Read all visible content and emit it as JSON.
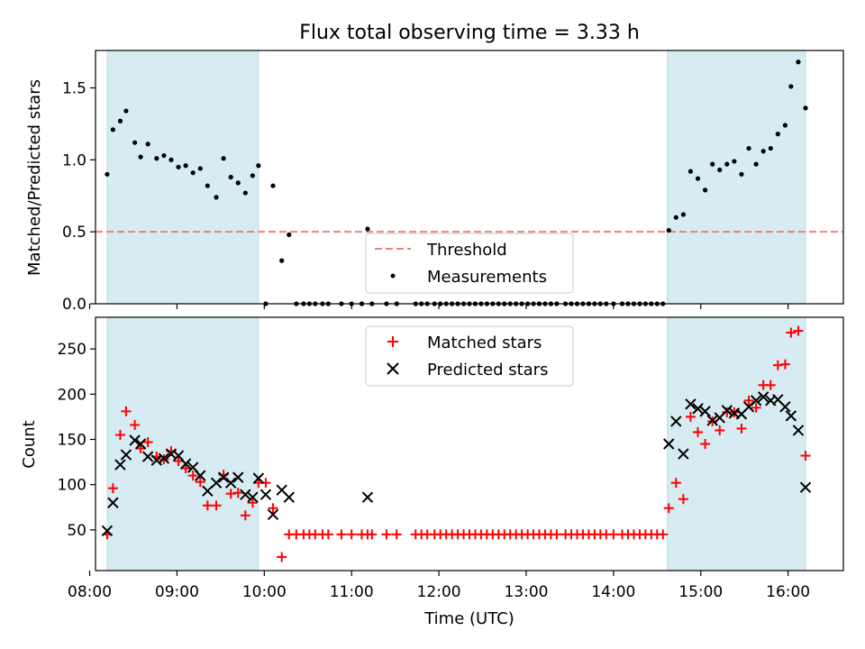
{
  "chart_data": [
    {
      "type": "scatter",
      "title": "Flux total observing time = 3.33 h",
      "xlabel": "",
      "ylabel": "Matched/Predicted stars",
      "xlim": [
        "08:04",
        "16:38"
      ],
      "ylim": [
        0,
        1.76
      ],
      "yticks": [
        "0.0",
        "0.5",
        "1.0",
        "1.5"
      ],
      "shaded_intervals": [
        [
          "08:12",
          "09:56"
        ],
        [
          "14:37",
          "16:12"
        ]
      ],
      "threshold": {
        "name": "Threshold",
        "value": 0.5,
        "color": "#f08080"
      },
      "legend": {
        "position": "lower-center",
        "entries": [
          "Threshold",
          "Measurements"
        ]
      },
      "series": [
        {
          "name": "Measurements",
          "color": "#000000",
          "x": [
            "08:12",
            "08:16",
            "08:21",
            "08:25",
            "08:31",
            "08:35",
            "08:40",
            "08:46",
            "08:51",
            "08:56",
            "09:01",
            "09:06",
            "09:11",
            "09:16",
            "09:21",
            "09:27",
            "09:32",
            "09:37",
            "09:42",
            "09:47",
            "09:52",
            "09:56",
            "10:01",
            "10:06",
            "10:12",
            "10:17",
            "10:22",
            "10:27",
            "10:31",
            "10:35",
            "10:40",
            "10:44",
            "10:53",
            "11:00",
            "11:07",
            "11:11",
            "11:14",
            "11:24",
            "11:31",
            "11:44",
            "11:48",
            "11:52",
            "11:57",
            "12:01",
            "12:05",
            "12:09",
            "12:13",
            "12:17",
            "12:21",
            "12:25",
            "12:29",
            "12:33",
            "12:37",
            "12:41",
            "12:45",
            "12:49",
            "12:53",
            "12:57",
            "13:01",
            "13:05",
            "13:09",
            "13:13",
            "13:17",
            "13:21",
            "13:27",
            "13:31",
            "13:35",
            "13:39",
            "13:43",
            "13:47",
            "13:51",
            "13:55",
            "14:00",
            "14:06",
            "14:10",
            "14:14",
            "14:18",
            "14:22",
            "14:26",
            "14:30",
            "14:34",
            "14:38",
            "14:43",
            "14:48",
            "14:53",
            "14:58",
            "15:03",
            "15:08",
            "15:13",
            "15:18",
            "15:23",
            "15:28",
            "15:33",
            "15:38",
            "15:43",
            "15:48",
            "15:53",
            "15:58",
            "16:02",
            "16:07",
            "16:12"
          ],
          "y": [
            0.9,
            1.21,
            1.27,
            1.34,
            1.12,
            1.02,
            1.11,
            1.01,
            1.03,
            1.0,
            0.95,
            0.96,
            0.91,
            0.94,
            0.82,
            0.74,
            1.01,
            0.88,
            0.84,
            0.77,
            0.89,
            0.96,
            0.0,
            0.82,
            0.3,
            0.48,
            0.0,
            0.0,
            0.0,
            0.0,
            0.0,
            0.0,
            0.0,
            0.0,
            0.0,
            0.52,
            0.0,
            0.0,
            0.0,
            0.0,
            0.0,
            0.0,
            0.0,
            0.0,
            0.0,
            0.0,
            0.0,
            0.0,
            0.0,
            0.0,
            0.0,
            0.0,
            0.0,
            0.0,
            0.0,
            0.0,
            0.0,
            0.0,
            0.0,
            0.0,
            0.0,
            0.0,
            0.0,
            0.0,
            0.0,
            0.0,
            0.0,
            0.0,
            0.0,
            0.0,
            0.0,
            0.0,
            0.0,
            0.0,
            0.0,
            0.0,
            0.0,
            0.0,
            0.0,
            0.0,
            0.0,
            0.51,
            0.6,
            0.62,
            0.92,
            0.87,
            0.79,
            0.97,
            0.93,
            0.97,
            0.99,
            0.9,
            1.08,
            0.97,
            1.06,
            1.08,
            1.18,
            1.24,
            1.51,
            1.68,
            1.36
          ]
        }
      ]
    },
    {
      "type": "scatter",
      "xlabel": "Time (UTC)",
      "ylabel": "Count",
      "xlim": [
        "08:04",
        "16:38"
      ],
      "ylim": [
        5,
        285
      ],
      "yticks": [
        "50",
        "100",
        "150",
        "200",
        "250"
      ],
      "xticks": [
        "08:00",
        "09:00",
        "10:00",
        "11:00",
        "12:00",
        "13:00",
        "14:00",
        "15:00",
        "16:00"
      ],
      "shaded_intervals": [
        [
          "08:12",
          "09:56"
        ],
        [
          "14:37",
          "16:12"
        ]
      ],
      "legend": {
        "position": "top-center",
        "entries": [
          "Matched stars",
          "Predicted stars"
        ]
      },
      "series": [
        {
          "name": "Matched stars",
          "color": "#ff0000",
          "marker": "plus",
          "x": [
            "08:12",
            "08:16",
            "08:21",
            "08:25",
            "08:31",
            "08:35",
            "08:40",
            "08:46",
            "08:51",
            "08:56",
            "09:01",
            "09:06",
            "09:11",
            "09:16",
            "09:21",
            "09:27",
            "09:32",
            "09:37",
            "09:42",
            "09:47",
            "09:52",
            "09:56",
            "10:01",
            "10:06",
            "10:12",
            "10:17",
            "10:22",
            "10:27",
            "10:31",
            "10:35",
            "10:40",
            "10:44",
            "10:53",
            "11:00",
            "11:07",
            "11:11",
            "11:14",
            "11:24",
            "11:31",
            "11:44",
            "11:48",
            "11:52",
            "11:57",
            "12:01",
            "12:05",
            "12:09",
            "12:13",
            "12:17",
            "12:21",
            "12:25",
            "12:29",
            "12:33",
            "12:37",
            "12:41",
            "12:45",
            "12:49",
            "12:53",
            "12:57",
            "13:01",
            "13:05",
            "13:09",
            "13:13",
            "13:17",
            "13:21",
            "13:27",
            "13:31",
            "13:35",
            "13:39",
            "13:43",
            "13:47",
            "13:51",
            "13:55",
            "14:00",
            "14:06",
            "14:10",
            "14:14",
            "14:18",
            "14:22",
            "14:26",
            "14:30",
            "14:34",
            "14:38",
            "14:43",
            "14:48",
            "14:53",
            "14:58",
            "15:03",
            "15:08",
            "15:13",
            "15:18",
            "15:23",
            "15:28",
            "15:33",
            "15:38",
            "15:43",
            "15:48",
            "15:53",
            "15:58",
            "16:02",
            "16:07",
            "16:12"
          ],
          "y": [
            45,
            96,
            155,
            181,
            166,
            140,
            147,
            131,
            128,
            137,
            126,
            118,
            110,
            103,
            77,
            77,
            111,
            90,
            91,
            66,
            80,
            102,
            102,
            74,
            20,
            45,
            45,
            45,
            45,
            45,
            45,
            45,
            45,
            45,
            45,
            45,
            45,
            45,
            45,
            45,
            45,
            45,
            45,
            45,
            45,
            45,
            45,
            45,
            45,
            45,
            45,
            45,
            45,
            45,
            45,
            45,
            45,
            45,
            45,
            45,
            45,
            45,
            45,
            45,
            45,
            45,
            45,
            45,
            45,
            45,
            45,
            45,
            45,
            45,
            45,
            45,
            45,
            45,
            45,
            45,
            45,
            74,
            102,
            84,
            175,
            158,
            145,
            170,
            160,
            180,
            180,
            162,
            193,
            185,
            210,
            210,
            232,
            233,
            268,
            270,
            132
          ]
        },
        {
          "name": "Predicted stars",
          "color": "#000000",
          "marker": "x",
          "x": [
            "08:12",
            "08:16",
            "08:21",
            "08:25",
            "08:31",
            "08:35",
            "08:40",
            "08:46",
            "08:51",
            "08:56",
            "09:01",
            "09:06",
            "09:11",
            "09:16",
            "09:21",
            "09:27",
            "09:32",
            "09:37",
            "09:42",
            "09:47",
            "09:52",
            "09:56",
            "10:01",
            "10:06",
            "10:12",
            "10:17",
            "11:11",
            "14:38",
            "14:43",
            "14:48",
            "14:53",
            "14:58",
            "15:03",
            "15:08",
            "15:13",
            "15:18",
            "15:23",
            "15:28",
            "15:33",
            "15:38",
            "15:43",
            "15:48",
            "15:53",
            "15:58",
            "16:02",
            "16:07",
            "16:12"
          ],
          "y": [
            49,
            80,
            122,
            133,
            149,
            145,
            131,
            127,
            129,
            134,
            132,
            123,
            119,
            110,
            93,
            102,
            108,
            102,
            108,
            89,
            86,
            107,
            89,
            67,
            94,
            86,
            86,
            145,
            170,
            134,
            189,
            184,
            181,
            171,
            174,
            182,
            179,
            178,
            186,
            193,
            197,
            193,
            194,
            186,
            176,
            160,
            97
          ]
        }
      ]
    }
  ]
}
